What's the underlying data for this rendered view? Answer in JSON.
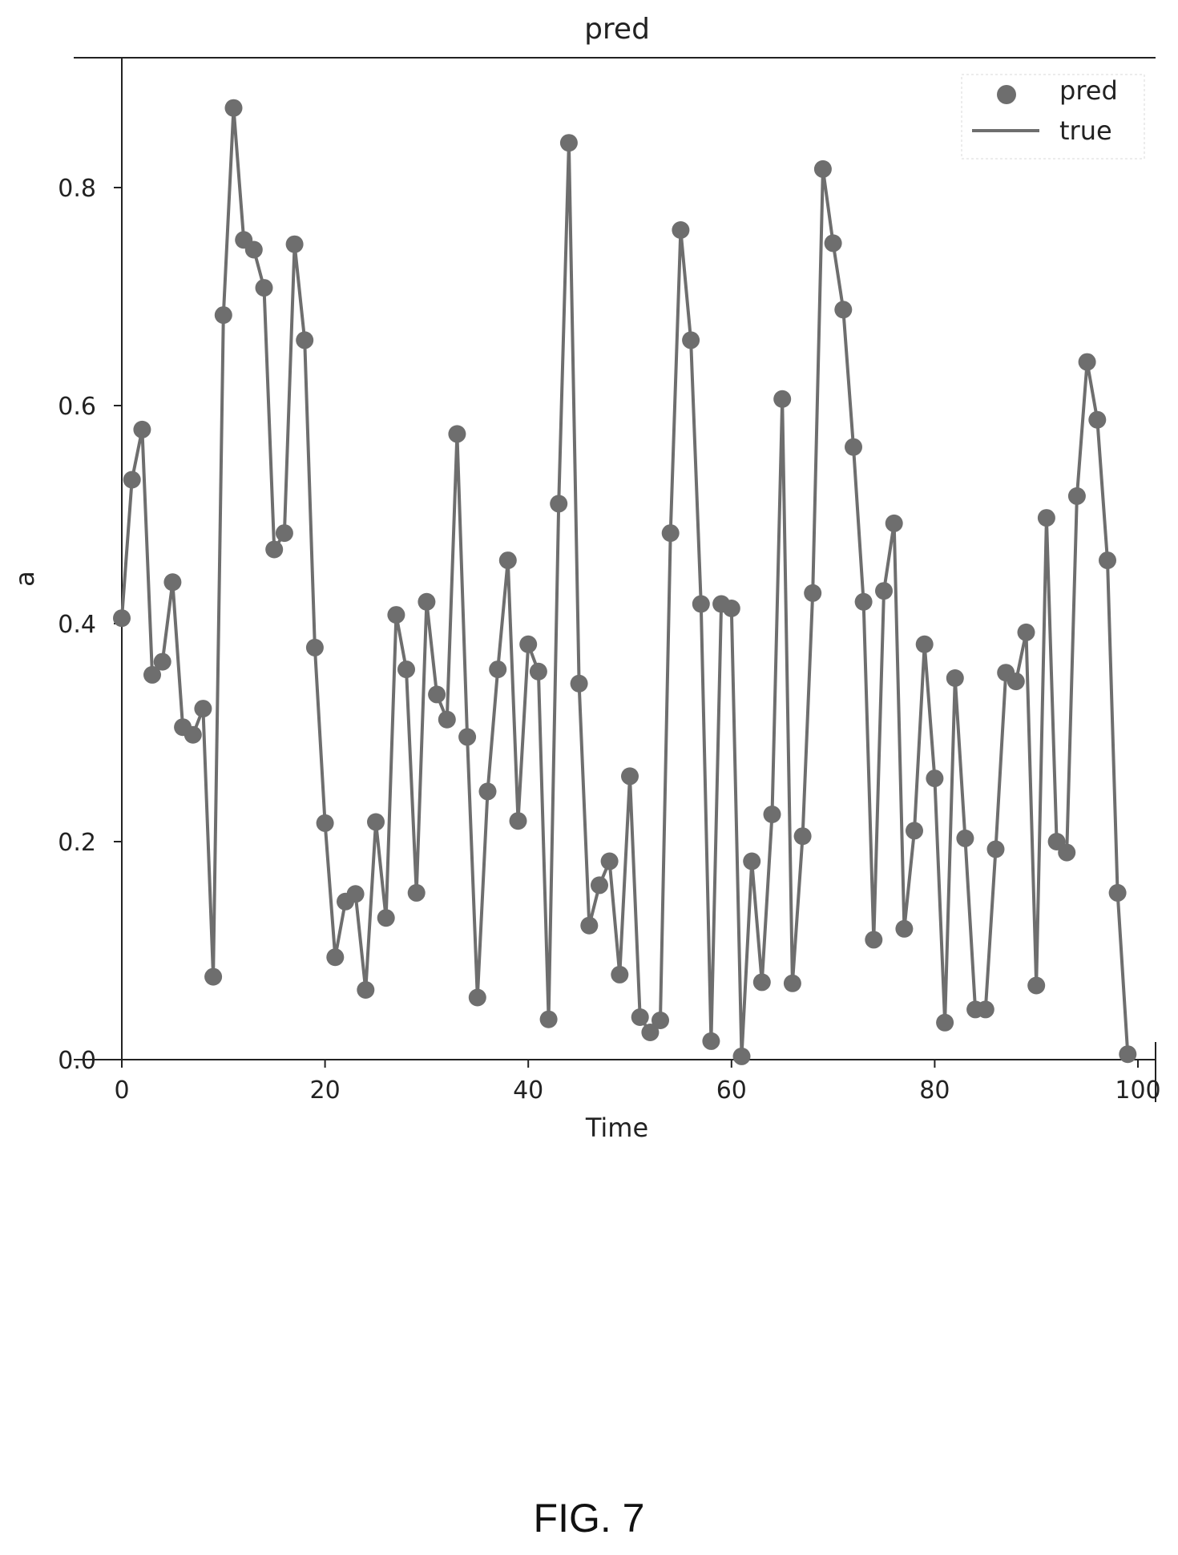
{
  "caption": "FIG. 7",
  "chart_data": {
    "type": "line",
    "title": "pred",
    "xlabel": "Time",
    "ylabel": "a",
    "xlim": [
      0,
      100
    ],
    "ylim": [
      0,
      0.9
    ],
    "xticks": [
      0,
      20,
      40,
      60,
      80,
      100
    ],
    "xtick_labels": [
      "0",
      "20",
      "40",
      "60",
      "80",
      "100"
    ],
    "yticks": [
      0.0,
      0.2,
      0.4,
      0.6,
      0.8
    ],
    "ytick_labels": [
      "0.0",
      "0.2",
      "0.4",
      "0.6",
      "0.8"
    ],
    "grid": false,
    "legend_position": "top-right",
    "colors": {
      "series": "#6e6e6e",
      "axis": "#222222"
    },
    "series": [
      {
        "name": "pred",
        "style": "markers"
      },
      {
        "name": "true",
        "style": "line"
      }
    ],
    "x": [
      0,
      1,
      2,
      3,
      4,
      5,
      6,
      7,
      8,
      9,
      10,
      11,
      12,
      13,
      14,
      15,
      16,
      17,
      18,
      19,
      20,
      21,
      22,
      23,
      24,
      25,
      26,
      27,
      28,
      29,
      30,
      31,
      32,
      33,
      34,
      35,
      36,
      37,
      38,
      39,
      40,
      41,
      42,
      43,
      44,
      45,
      46,
      47,
      48,
      49,
      50,
      51,
      52,
      53,
      54,
      55,
      56,
      57,
      58,
      59,
      60,
      61,
      62,
      63,
      64,
      65,
      66,
      67,
      68,
      69,
      70,
      71,
      72,
      73,
      74,
      75,
      76,
      77,
      78,
      79,
      80,
      81,
      82,
      83,
      84,
      85,
      86,
      87,
      88,
      89,
      90,
      91,
      92,
      93,
      94,
      95,
      96,
      97,
      98,
      99
    ],
    "values": [
      0.405,
      0.532,
      0.578,
      0.353,
      0.365,
      0.438,
      0.305,
      0.298,
      0.322,
      0.076,
      0.683,
      0.873,
      0.752,
      0.743,
      0.708,
      0.468,
      0.483,
      0.748,
      0.66,
      0.378,
      0.217,
      0.094,
      0.145,
      0.152,
      0.064,
      0.218,
      0.13,
      0.408,
      0.358,
      0.153,
      0.42,
      0.335,
      0.312,
      0.574,
      0.296,
      0.057,
      0.246,
      0.358,
      0.458,
      0.219,
      0.381,
      0.356,
      0.037,
      0.51,
      0.841,
      0.345,
      0.123,
      0.16,
      0.182,
      0.078,
      0.26,
      0.039,
      0.025,
      0.036,
      0.483,
      0.761,
      0.66,
      0.418,
      0.017,
      0.418,
      0.414,
      0.003,
      0.182,
      0.071,
      0.225,
      0.606,
      0.07,
      0.205,
      0.428,
      0.817,
      0.749,
      0.688,
      0.562,
      0.42,
      0.11,
      0.43,
      0.492,
      0.12,
      0.21,
      0.381,
      0.258,
      0.034,
      0.35,
      0.203,
      0.046,
      0.046,
      0.193,
      0.355,
      0.347,
      0.392,
      0.068,
      0.497,
      0.2,
      0.19,
      0.517,
      0.64,
      0.587,
      0.458,
      0.153,
      0.005
    ]
  }
}
